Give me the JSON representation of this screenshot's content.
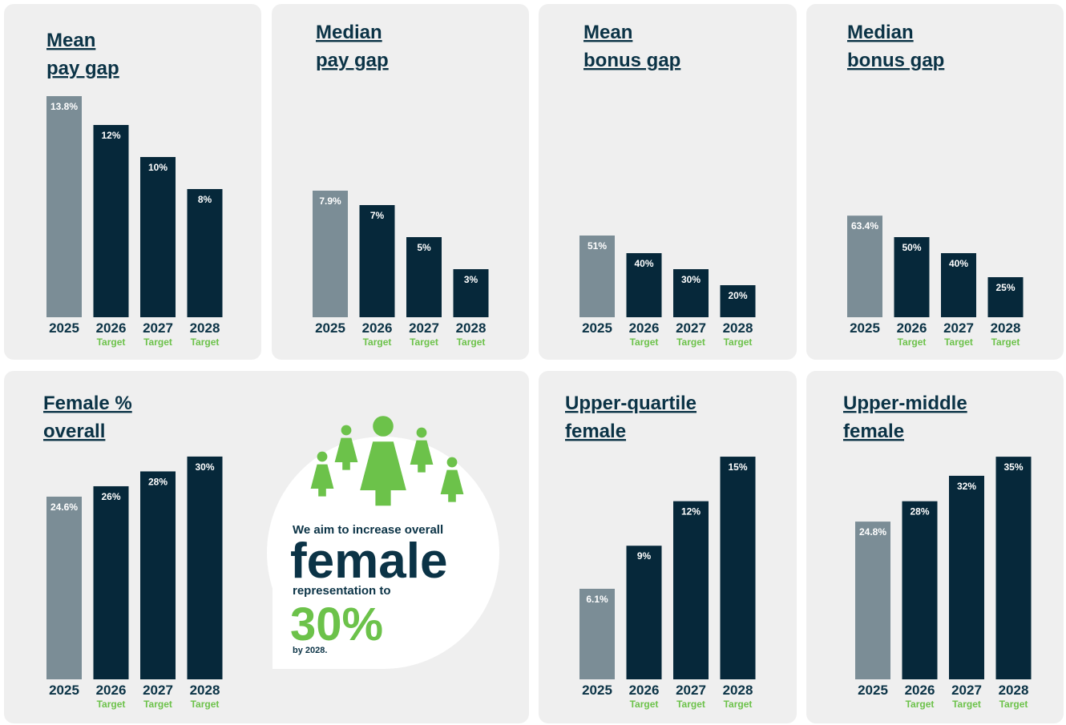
{
  "chart_data": [
    {
      "type": "bar",
      "title": [
        "Mean",
        "pay gap"
      ],
      "categories": [
        "2025",
        "2026",
        "2027",
        "2028"
      ],
      "category_notes": [
        null,
        "Target",
        "Target",
        "Target"
      ],
      "values": [
        13.8,
        12,
        10,
        8
      ],
      "value_labels": [
        "13.8%",
        "12%",
        "10%",
        "8%"
      ],
      "colors": [
        "#7b8d96",
        "#06283a",
        "#06283a",
        "#06283a"
      ]
    },
    {
      "type": "bar",
      "title": [
        "Median",
        "pay gap"
      ],
      "categories": [
        "2025",
        "2026",
        "2027",
        "2028"
      ],
      "category_notes": [
        null,
        "Target",
        "Target",
        "Target"
      ],
      "values": [
        7.9,
        7,
        5,
        3
      ],
      "value_labels": [
        "7.9%",
        "7%",
        "5%",
        "3%"
      ],
      "colors": [
        "#7b8d96",
        "#06283a",
        "#06283a",
        "#06283a"
      ]
    },
    {
      "type": "bar",
      "title": [
        "Mean",
        "bonus gap"
      ],
      "categories": [
        "2025",
        "2026",
        "2027",
        "2028"
      ],
      "category_notes": [
        null,
        "Target",
        "Target",
        "Target"
      ],
      "values": [
        51,
        40,
        30,
        20
      ],
      "value_labels": [
        "51%",
        "40%",
        "30%",
        "20%"
      ],
      "colors": [
        "#7b8d96",
        "#06283a",
        "#06283a",
        "#06283a"
      ]
    },
    {
      "type": "bar",
      "title": [
        "Median",
        "bonus gap"
      ],
      "categories": [
        "2025",
        "2026",
        "2027",
        "2028"
      ],
      "category_notes": [
        null,
        "Target",
        "Target",
        "Target"
      ],
      "values": [
        63.4,
        50,
        40,
        25
      ],
      "value_labels": [
        "63.4%",
        "50%",
        "40%",
        "25%"
      ],
      "colors": [
        "#7b8d96",
        "#06283a",
        "#06283a",
        "#06283a"
      ]
    },
    {
      "type": "bar",
      "title": [
        "Female %",
        "overall"
      ],
      "categories": [
        "2025",
        "2026",
        "2027",
        "2028"
      ],
      "category_notes": [
        null,
        "Target",
        "Target",
        "Target"
      ],
      "values": [
        24.6,
        26,
        28,
        30
      ],
      "value_labels": [
        "24.6%",
        "26%",
        "28%",
        "30%"
      ],
      "colors": [
        "#7b8d96",
        "#06283a",
        "#06283a",
        "#06283a"
      ]
    },
    {
      "type": "bar",
      "title": [
        "Upper-quartile",
        "female"
      ],
      "categories": [
        "2025",
        "2026",
        "2027",
        "2028"
      ],
      "category_notes": [
        null,
        "Target",
        "Target",
        "Target"
      ],
      "values": [
        6.1,
        9,
        12,
        15
      ],
      "value_labels": [
        "6.1%",
        "9%",
        "12%",
        "15%"
      ],
      "colors": [
        "#7b8d96",
        "#06283a",
        "#06283a",
        "#06283a"
      ]
    },
    {
      "type": "bar",
      "title": [
        "Upper-middle",
        "female"
      ],
      "categories": [
        "2025",
        "2026",
        "2027",
        "2028"
      ],
      "category_notes": [
        null,
        "Target",
        "Target",
        "Target"
      ],
      "values": [
        24.8,
        28,
        32,
        35
      ],
      "value_labels": [
        "24.8%",
        "28%",
        "32%",
        "35%"
      ],
      "colors": [
        "#7b8d96",
        "#06283a",
        "#06283a",
        "#06283a"
      ]
    }
  ],
  "callout": {
    "intro": "We aim to increase overall",
    "highlight": "female",
    "middle": "representation to",
    "target": "30%",
    "deadline": "by 2028."
  }
}
